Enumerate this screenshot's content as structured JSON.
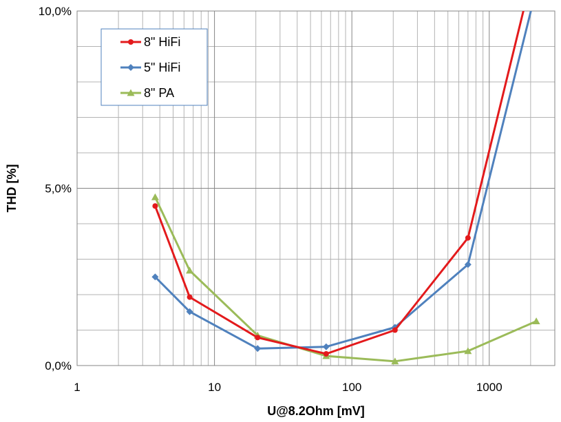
{
  "chart_data": {
    "type": "line",
    "xlabel": "U@8.2Ohm [mV]",
    "ylabel": "THD [%]",
    "xscale": "log",
    "xlim": [
      1,
      3000
    ],
    "ylim": [
      0,
      10
    ],
    "grid": true,
    "legend_position": "top-left",
    "x_ticks": [
      {
        "value": 1,
        "label": "1"
      },
      {
        "value": 10,
        "label": "10"
      },
      {
        "value": 100,
        "label": "100"
      },
      {
        "value": 1000,
        "label": "1000"
      }
    ],
    "y_ticks": [
      {
        "value": 0,
        "label": "0,0%"
      },
      {
        "value": 5,
        "label": "5,0%"
      },
      {
        "value": 10,
        "label": "10,0%"
      }
    ],
    "series": [
      {
        "name": "8\" HiFi",
        "color": "#e31a1c",
        "marker": "circle",
        "points": [
          [
            3.7,
            4.5
          ],
          [
            6.6,
            1.93
          ],
          [
            20.6,
            0.79
          ],
          [
            65,
            0.33
          ],
          [
            206,
            1.0
          ],
          [
            700,
            3.6
          ],
          [
            1850,
            10.3
          ]
        ]
      },
      {
        "name": "5\" HiFi",
        "color": "#4f81bd",
        "marker": "diamond",
        "points": [
          [
            3.7,
            2.5
          ],
          [
            6.6,
            1.52
          ],
          [
            20.6,
            0.48
          ],
          [
            65,
            0.53
          ],
          [
            206,
            1.08
          ],
          [
            700,
            2.85
          ],
          [
            2100,
            10.3
          ]
        ]
      },
      {
        "name": "8\" PA",
        "color": "#9bbb59",
        "marker": "triangle",
        "points": [
          [
            3.7,
            4.75
          ],
          [
            6.6,
            2.68
          ],
          [
            20.6,
            0.85
          ],
          [
            65,
            0.27
          ],
          [
            206,
            0.12
          ],
          [
            700,
            0.41
          ],
          [
            2200,
            1.25
          ]
        ]
      }
    ]
  }
}
